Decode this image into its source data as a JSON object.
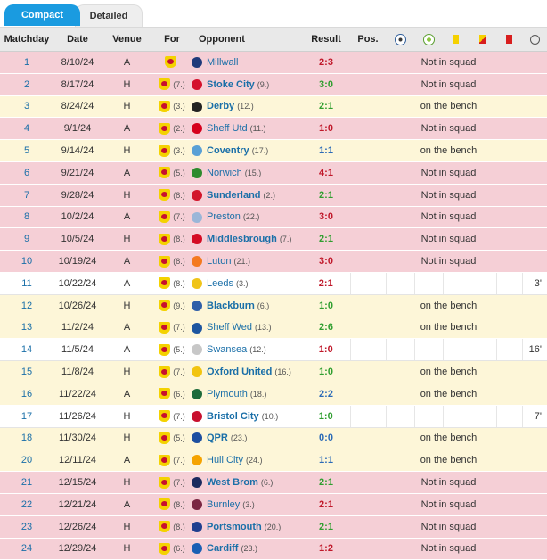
{
  "tabs": {
    "compact": "Compact",
    "detailed": "Detailed"
  },
  "headers": {
    "matchday": "Matchday",
    "date": "Date",
    "venue": "Venue",
    "for": "For",
    "opponent": "Opponent",
    "result": "Result",
    "pos": "Pos.",
    "goals_icon": "ball-icon",
    "assists_icon": "assist-icon",
    "yellow_icon": "yellow-card-icon",
    "second_yellow_icon": "second-yellow-card-icon",
    "red_icon": "red-card-icon",
    "minutes_icon": "clock-icon"
  },
  "colors": {
    "row_not_in_squad": "#f5cfd6",
    "row_on_bench": "#fdf6d8",
    "row_played": "#ffffff",
    "win": "#2f9e2f",
    "draw": "#2a6ab7",
    "loss": "#c0182a",
    "link": "#1a6fa8",
    "tab_active": "#1a9be0"
  },
  "matches": [
    {
      "md": "1",
      "date": "8/10/24",
      "venue": "A",
      "for_rank": "",
      "opp": "Millwall",
      "opp_rank": "",
      "bold": false,
      "result": "2:3",
      "outcome": "loss",
      "status": "Not in squad",
      "mins": "",
      "row": "red",
      "crest": "#1f3a7a"
    },
    {
      "md": "2",
      "date": "8/17/24",
      "venue": "H",
      "for_rank": "(7.)",
      "opp": "Stoke City",
      "opp_rank": "(9.)",
      "bold": true,
      "result": "3:0",
      "outcome": "win",
      "status": "Not in squad",
      "mins": "",
      "row": "red",
      "crest": "#d4102b"
    },
    {
      "md": "3",
      "date": "8/24/24",
      "venue": "H",
      "for_rank": "(3.)",
      "opp": "Derby",
      "opp_rank": "(12.)",
      "bold": true,
      "result": "2:1",
      "outcome": "win",
      "status": "on the bench",
      "mins": "",
      "row": "yellow",
      "crest": "#222222"
    },
    {
      "md": "4",
      "date": "9/1/24",
      "venue": "A",
      "for_rank": "(2.)",
      "opp": "Sheff Utd",
      "opp_rank": "(11.)",
      "bold": false,
      "result": "1:0",
      "outcome": "loss",
      "status": "Not in squad",
      "mins": "",
      "row": "red",
      "crest": "#d6001c"
    },
    {
      "md": "5",
      "date": "9/14/24",
      "venue": "H",
      "for_rank": "(3.)",
      "opp": "Coventry",
      "opp_rank": "(17.)",
      "bold": true,
      "result": "1:1",
      "outcome": "draw",
      "status": "on the bench",
      "mins": "",
      "row": "yellow",
      "crest": "#59a0d6"
    },
    {
      "md": "6",
      "date": "9/21/24",
      "venue": "A",
      "for_rank": "(5.)",
      "opp": "Norwich",
      "opp_rank": "(15.)",
      "bold": false,
      "result": "4:1",
      "outcome": "loss",
      "status": "Not in squad",
      "mins": "",
      "row": "red",
      "crest": "#2e8b2e"
    },
    {
      "md": "7",
      "date": "9/28/24",
      "venue": "H",
      "for_rank": "(8.)",
      "opp": "Sunderland",
      "opp_rank": "(2.)",
      "bold": true,
      "result": "2:1",
      "outcome": "win",
      "status": "Not in squad",
      "mins": "",
      "row": "red",
      "crest": "#d2152a"
    },
    {
      "md": "8",
      "date": "10/2/24",
      "venue": "A",
      "for_rank": "(7.)",
      "opp": "Preston",
      "opp_rank": "(22.)",
      "bold": false,
      "result": "3:0",
      "outcome": "loss",
      "status": "Not in squad",
      "mins": "",
      "row": "red",
      "crest": "#9ab6d8"
    },
    {
      "md": "9",
      "date": "10/5/24",
      "venue": "H",
      "for_rank": "(8.)",
      "opp": "Middlesbrough",
      "opp_rank": "(7.)",
      "bold": true,
      "result": "2:1",
      "outcome": "win",
      "status": "Not in squad",
      "mins": "",
      "row": "red",
      "crest": "#d40c24"
    },
    {
      "md": "10",
      "date": "10/19/24",
      "venue": "A",
      "for_rank": "(8.)",
      "opp": "Luton",
      "opp_rank": "(21.)",
      "bold": false,
      "result": "3:0",
      "outcome": "loss",
      "status": "Not in squad",
      "mins": "",
      "row": "red",
      "crest": "#f47a20"
    },
    {
      "md": "11",
      "date": "10/22/24",
      "venue": "A",
      "for_rank": "(8.)",
      "opp": "Leeds",
      "opp_rank": "(3.)",
      "bold": false,
      "result": "2:1",
      "outcome": "loss",
      "status": "",
      "mins": "3'",
      "row": "white",
      "crest": "#f0c419"
    },
    {
      "md": "12",
      "date": "10/26/24",
      "venue": "H",
      "for_rank": "(9.)",
      "opp": "Blackburn",
      "opp_rank": "(6.)",
      "bold": true,
      "result": "1:0",
      "outcome": "win",
      "status": "on the bench",
      "mins": "",
      "row": "yellow",
      "crest": "#2f5fa8"
    },
    {
      "md": "13",
      "date": "11/2/24",
      "venue": "A",
      "for_rank": "(7.)",
      "opp": "Sheff Wed",
      "opp_rank": "(13.)",
      "bold": false,
      "result": "2:6",
      "outcome": "win",
      "status": "on the bench",
      "mins": "",
      "row": "yellow",
      "crest": "#1e56a0"
    },
    {
      "md": "14",
      "date": "11/5/24",
      "venue": "A",
      "for_rank": "(5.)",
      "opp": "Swansea",
      "opp_rank": "(12.)",
      "bold": false,
      "result": "1:0",
      "outcome": "loss",
      "status": "",
      "mins": "16'",
      "row": "white",
      "crest": "#c7c7c7"
    },
    {
      "md": "15",
      "date": "11/8/24",
      "venue": "H",
      "for_rank": "(7.)",
      "opp": "Oxford United",
      "opp_rank": "(16.)",
      "bold": true,
      "result": "1:0",
      "outcome": "win",
      "status": "on the bench",
      "mins": "",
      "row": "yellow",
      "crest": "#f2c40f"
    },
    {
      "md": "16",
      "date": "11/22/24",
      "venue": "A",
      "for_rank": "(6.)",
      "opp": "Plymouth",
      "opp_rank": "(18.)",
      "bold": false,
      "result": "2:2",
      "outcome": "draw",
      "status": "on the bench",
      "mins": "",
      "row": "yellow",
      "crest": "#1d6b3a"
    },
    {
      "md": "17",
      "date": "11/26/24",
      "venue": "H",
      "for_rank": "(7.)",
      "opp": "Bristol City",
      "opp_rank": "(10.)",
      "bold": true,
      "result": "1:0",
      "outcome": "win",
      "status": "",
      "mins": "7'",
      "row": "white",
      "crest": "#c8102e"
    },
    {
      "md": "18",
      "date": "11/30/24",
      "venue": "H",
      "for_rank": "(5.)",
      "opp": "QPR",
      "opp_rank": "(23.)",
      "bold": true,
      "result": "0:0",
      "outcome": "draw",
      "status": "on the bench",
      "mins": "",
      "row": "yellow",
      "crest": "#1d4fa0"
    },
    {
      "md": "20",
      "date": "12/11/24",
      "venue": "A",
      "for_rank": "(7.)",
      "opp": "Hull City",
      "opp_rank": "(24.)",
      "bold": false,
      "result": "1:1",
      "outcome": "draw",
      "status": "on the bench",
      "mins": "",
      "row": "yellow",
      "crest": "#f5a300"
    },
    {
      "md": "21",
      "date": "12/15/24",
      "venue": "H",
      "for_rank": "(7.)",
      "opp": "West Brom",
      "opp_rank": "(6.)",
      "bold": true,
      "result": "2:1",
      "outcome": "win",
      "status": "Not in squad",
      "mins": "",
      "row": "red",
      "crest": "#1b2a5e"
    },
    {
      "md": "22",
      "date": "12/21/24",
      "venue": "A",
      "for_rank": "(8.)",
      "opp": "Burnley",
      "opp_rank": "(3.)",
      "bold": false,
      "result": "2:1",
      "outcome": "loss",
      "status": "Not in squad",
      "mins": "",
      "row": "red",
      "crest": "#7a2642"
    },
    {
      "md": "23",
      "date": "12/26/24",
      "venue": "H",
      "for_rank": "(8.)",
      "opp": "Portsmouth",
      "opp_rank": "(20.)",
      "bold": true,
      "result": "2:1",
      "outcome": "win",
      "status": "Not in squad",
      "mins": "",
      "row": "red",
      "crest": "#1f3f8f"
    },
    {
      "md": "24",
      "date": "12/29/24",
      "venue": "H",
      "for_rank": "(6.)",
      "opp": "Cardiff",
      "opp_rank": "(23.)",
      "bold": true,
      "result": "1:2",
      "outcome": "loss",
      "status": "Not in squad",
      "mins": "",
      "row": "red",
      "crest": "#1a5fb4"
    }
  ]
}
